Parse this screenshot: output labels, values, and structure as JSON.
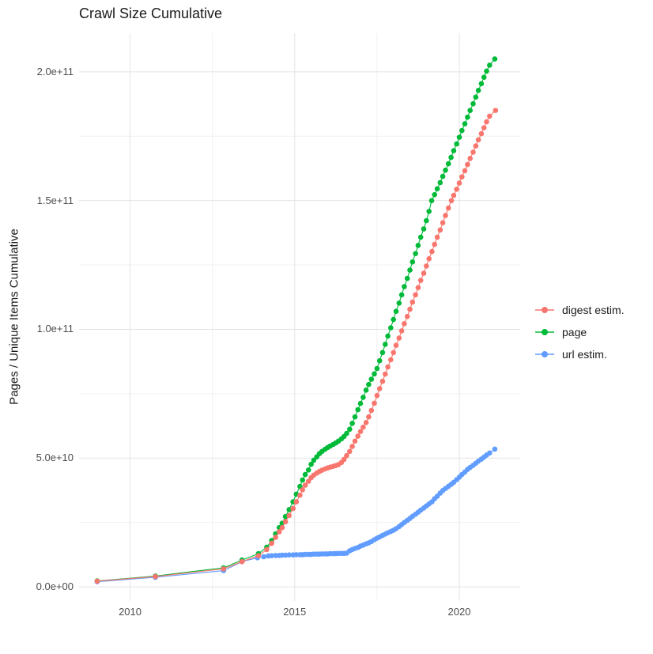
{
  "title": "Crawl Size Cumulative",
  "axes": {
    "y_label": "Pages / Unique Items Cumulative",
    "x_ticks": [
      {
        "value": 2010,
        "label": "2010"
      },
      {
        "value": 2015,
        "label": "2015"
      },
      {
        "value": 2020,
        "label": "2020"
      }
    ],
    "y_ticks": [
      {
        "value": 0,
        "label": "0.0e+00"
      },
      {
        "value": 50000000000.0,
        "label": "5.0e+10"
      },
      {
        "value": 100000000000.0,
        "label": "1.0e+11"
      },
      {
        "value": 150000000000.0,
        "label": "1.5e+11"
      },
      {
        "value": 200000000000.0,
        "label": "2.0e+11"
      }
    ]
  },
  "legend": {
    "position": "right",
    "items": [
      {
        "label": "digest estim.",
        "color": "#F8766D"
      },
      {
        "label": "page",
        "color": "#00BA38"
      },
      {
        "label": "url estim.",
        "color": "#619CFF"
      }
    ]
  },
  "colors": {
    "digest": "#F8766D",
    "page": "#00BA38",
    "url": "#619CFF",
    "grid_major": "#E4E4E4",
    "grid_minor": "#F1F1F1",
    "tick_text": "#4d4d4d"
  },
  "chart_data": {
    "type": "scatter",
    "title": "Crawl Size Cumulative",
    "xlabel": "",
    "ylabel": "Pages / Unique Items Cumulative",
    "xlim": [
      2008.45,
      2021.85
    ],
    "ylim": [
      -5500000000.0,
      215000000000.0
    ],
    "x_tick_values": [
      2010,
      2015,
      2020
    ],
    "y_tick_values": [
      0,
      50000000000.0,
      100000000000.0,
      150000000000.0,
      200000000000.0
    ],
    "grid": true,
    "legend_position": "right",
    "y_scale": 1000000000.0,
    "point_radius": 3.3,
    "draw_order": [
      1,
      2,
      0
    ],
    "series": [
      {
        "name": "digest estim.",
        "color": "#F8766D",
        "points": [
          [
            2009.0,
            2.2
          ],
          [
            2010.77,
            4.0
          ],
          [
            2012.84,
            7.0
          ],
          [
            2013.4,
            9.8
          ],
          [
            2013.9,
            12.1
          ],
          [
            2014.15,
            14.5
          ],
          [
            2014.3,
            16.9
          ],
          [
            2014.42,
            19.2
          ],
          [
            2014.53,
            21.4
          ],
          [
            2014.62,
            23.0
          ],
          [
            2014.72,
            25.3
          ],
          [
            2014.83,
            27.7
          ],
          [
            2014.95,
            30.4
          ],
          [
            2015.05,
            33.0
          ],
          [
            2015.16,
            35.6
          ],
          [
            2015.24,
            37.7
          ],
          [
            2015.32,
            39.5
          ],
          [
            2015.42,
            41.0
          ],
          [
            2015.5,
            42.4
          ],
          [
            2015.58,
            43.4
          ],
          [
            2015.67,
            44.2
          ],
          [
            2015.75,
            44.8
          ],
          [
            2015.83,
            45.3
          ],
          [
            2015.92,
            45.8
          ],
          [
            2016.0,
            46.2
          ],
          [
            2016.08,
            46.5
          ],
          [
            2016.17,
            46.8
          ],
          [
            2016.25,
            47.1
          ],
          [
            2016.33,
            47.5
          ],
          [
            2016.42,
            48.3
          ],
          [
            2016.5,
            49.5
          ],
          [
            2016.58,
            51.0
          ],
          [
            2016.67,
            52.6
          ],
          [
            2016.75,
            54.5
          ],
          [
            2016.83,
            56.6
          ],
          [
            2016.92,
            58.5
          ],
          [
            2017.0,
            60.3
          ],
          [
            2017.08,
            62.0
          ],
          [
            2017.17,
            63.8
          ],
          [
            2017.25,
            66.0
          ],
          [
            2017.33,
            68.5
          ],
          [
            2017.42,
            71.3
          ],
          [
            2017.5,
            74.3
          ],
          [
            2017.58,
            77.0
          ],
          [
            2017.67,
            79.8
          ],
          [
            2017.75,
            82.6
          ],
          [
            2017.83,
            85.4
          ],
          [
            2017.92,
            88.2
          ],
          [
            2018.0,
            91.0
          ],
          [
            2018.08,
            93.8
          ],
          [
            2018.17,
            96.6
          ],
          [
            2018.25,
            99.4
          ],
          [
            2018.33,
            102.2
          ],
          [
            2018.42,
            105.0
          ],
          [
            2018.5,
            107.8
          ],
          [
            2018.58,
            110.6
          ],
          [
            2018.67,
            113.4
          ],
          [
            2018.75,
            116.2
          ],
          [
            2018.83,
            119.0
          ],
          [
            2018.92,
            121.8
          ],
          [
            2019.0,
            124.6
          ],
          [
            2019.08,
            127.4
          ],
          [
            2019.17,
            130.2
          ],
          [
            2019.25,
            133.0
          ],
          [
            2019.33,
            135.8
          ],
          [
            2019.42,
            138.6
          ],
          [
            2019.5,
            141.4
          ],
          [
            2019.58,
            144.2
          ],
          [
            2019.67,
            147.1
          ],
          [
            2019.76,
            150.0
          ],
          [
            2019.83,
            152.0
          ],
          [
            2019.92,
            154.4
          ],
          [
            2020.0,
            156.8
          ],
          [
            2020.08,
            159.2
          ],
          [
            2020.17,
            161.6
          ],
          [
            2020.25,
            164.0
          ],
          [
            2020.33,
            166.4
          ],
          [
            2020.42,
            168.8
          ],
          [
            2020.5,
            171.2
          ],
          [
            2020.58,
            173.6
          ],
          [
            2020.67,
            176.0
          ],
          [
            2020.75,
            178.3
          ],
          [
            2020.83,
            180.6
          ],
          [
            2020.92,
            182.8
          ],
          [
            2021.1,
            185.0
          ]
        ]
      },
      {
        "name": "page",
        "color": "#00BA38",
        "points": [
          [
            2009.0,
            2.3
          ],
          [
            2010.77,
            4.2
          ],
          [
            2012.84,
            7.4
          ],
          [
            2013.4,
            10.4
          ],
          [
            2013.9,
            12.9
          ],
          [
            2014.15,
            15.4
          ],
          [
            2014.3,
            18.0
          ],
          [
            2014.42,
            20.6
          ],
          [
            2014.53,
            23.0
          ],
          [
            2014.62,
            24.7
          ],
          [
            2014.72,
            27.3
          ],
          [
            2014.83,
            30.0
          ],
          [
            2014.95,
            33.0
          ],
          [
            2015.05,
            36.0
          ],
          [
            2015.16,
            39.0
          ],
          [
            2015.24,
            41.5
          ],
          [
            2015.32,
            43.6
          ],
          [
            2015.42,
            45.4
          ],
          [
            2015.5,
            47.6
          ],
          [
            2015.58,
            49.2
          ],
          [
            2015.67,
            50.5
          ],
          [
            2015.75,
            51.7
          ],
          [
            2015.83,
            52.6
          ],
          [
            2015.92,
            53.4
          ],
          [
            2016.0,
            54.1
          ],
          [
            2016.08,
            54.7
          ],
          [
            2016.17,
            55.3
          ],
          [
            2016.25,
            55.9
          ],
          [
            2016.33,
            56.6
          ],
          [
            2016.42,
            57.5
          ],
          [
            2016.5,
            58.4
          ],
          [
            2016.58,
            59.6
          ],
          [
            2016.67,
            61.2
          ],
          [
            2016.75,
            63.5
          ],
          [
            2016.83,
            66.0
          ],
          [
            2016.92,
            68.8
          ],
          [
            2017.0,
            71.2
          ],
          [
            2017.08,
            73.6
          ],
          [
            2017.17,
            76.4
          ],
          [
            2017.25,
            78.6
          ],
          [
            2017.33,
            80.6
          ],
          [
            2017.42,
            82.7
          ],
          [
            2017.5,
            84.8
          ],
          [
            2017.58,
            87.8
          ],
          [
            2017.67,
            91.0
          ],
          [
            2017.75,
            94.2
          ],
          [
            2017.83,
            97.4
          ],
          [
            2017.92,
            100.6
          ],
          [
            2018.0,
            103.8
          ],
          [
            2018.08,
            107.0
          ],
          [
            2018.17,
            110.2
          ],
          [
            2018.25,
            113.4
          ],
          [
            2018.33,
            116.6
          ],
          [
            2018.42,
            119.8
          ],
          [
            2018.5,
            123.0
          ],
          [
            2018.58,
            126.2
          ],
          [
            2018.67,
            129.4
          ],
          [
            2018.75,
            132.6
          ],
          [
            2018.83,
            135.8
          ],
          [
            2018.92,
            139.0
          ],
          [
            2019.0,
            142.2
          ],
          [
            2019.08,
            145.8
          ],
          [
            2019.16,
            150.0
          ],
          [
            2019.25,
            152.3
          ],
          [
            2019.33,
            154.6
          ],
          [
            2019.42,
            157.0
          ],
          [
            2019.5,
            159.4
          ],
          [
            2019.58,
            161.8
          ],
          [
            2019.67,
            164.3
          ],
          [
            2019.75,
            166.8
          ],
          [
            2019.83,
            169.4
          ],
          [
            2019.92,
            172.0
          ],
          [
            2020.0,
            174.6
          ],
          [
            2020.08,
            177.2
          ],
          [
            2020.17,
            179.8
          ],
          [
            2020.25,
            182.4
          ],
          [
            2020.33,
            185.0
          ],
          [
            2020.42,
            187.6
          ],
          [
            2020.5,
            190.2
          ],
          [
            2020.58,
            192.8
          ],
          [
            2020.67,
            195.4
          ],
          [
            2020.75,
            197.9
          ],
          [
            2020.83,
            200.3
          ],
          [
            2020.92,
            202.6
          ],
          [
            2021.08,
            205.0
          ]
        ]
      },
      {
        "name": "url estim.",
        "color": "#619CFF",
        "points": [
          [
            2009.0,
            2.0
          ],
          [
            2010.77,
            3.7
          ],
          [
            2012.84,
            6.3
          ],
          [
            2013.4,
            9.8
          ],
          [
            2013.87,
            11.3
          ],
          [
            2014.06,
            11.7
          ],
          [
            2014.2,
            12.0
          ],
          [
            2014.3,
            12.1
          ],
          [
            2014.42,
            12.2
          ],
          [
            2014.53,
            12.2
          ],
          [
            2014.62,
            12.3
          ],
          [
            2014.72,
            12.3
          ],
          [
            2014.83,
            12.4
          ],
          [
            2014.95,
            12.4
          ],
          [
            2015.05,
            12.5
          ],
          [
            2015.16,
            12.5
          ],
          [
            2015.24,
            12.5
          ],
          [
            2015.32,
            12.6
          ],
          [
            2015.42,
            12.6
          ],
          [
            2015.5,
            12.6
          ],
          [
            2015.58,
            12.7
          ],
          [
            2015.67,
            12.7
          ],
          [
            2015.75,
            12.7
          ],
          [
            2015.83,
            12.8
          ],
          [
            2015.92,
            12.8
          ],
          [
            2016.0,
            12.8
          ],
          [
            2016.08,
            12.9
          ],
          [
            2016.17,
            12.9
          ],
          [
            2016.25,
            12.9
          ],
          [
            2016.33,
            13.0
          ],
          [
            2016.42,
            13.0
          ],
          [
            2016.5,
            13.0
          ],
          [
            2016.58,
            13.1
          ],
          [
            2016.67,
            14.0
          ],
          [
            2016.75,
            14.5
          ],
          [
            2016.83,
            14.9
          ],
          [
            2016.92,
            15.3
          ],
          [
            2017.0,
            15.8
          ],
          [
            2017.08,
            16.2
          ],
          [
            2017.17,
            16.7
          ],
          [
            2017.25,
            17.1
          ],
          [
            2017.33,
            17.6
          ],
          [
            2017.42,
            18.3
          ],
          [
            2017.5,
            18.9
          ],
          [
            2017.58,
            19.4
          ],
          [
            2017.67,
            20.0
          ],
          [
            2017.75,
            20.5
          ],
          [
            2017.83,
            21.0
          ],
          [
            2017.92,
            21.5
          ],
          [
            2018.0,
            22.0
          ],
          [
            2018.08,
            22.6
          ],
          [
            2018.17,
            23.4
          ],
          [
            2018.25,
            24.2
          ],
          [
            2018.33,
            25.0
          ],
          [
            2018.42,
            25.8
          ],
          [
            2018.5,
            26.6
          ],
          [
            2018.58,
            27.4
          ],
          [
            2018.67,
            28.2
          ],
          [
            2018.75,
            29.0
          ],
          [
            2018.83,
            29.8
          ],
          [
            2018.92,
            30.6
          ],
          [
            2019.0,
            31.4
          ],
          [
            2019.08,
            32.2
          ],
          [
            2019.17,
            33.0
          ],
          [
            2019.25,
            34.2
          ],
          [
            2019.33,
            35.2
          ],
          [
            2019.42,
            36.4
          ],
          [
            2019.5,
            37.4
          ],
          [
            2019.58,
            38.2
          ],
          [
            2019.67,
            39.0
          ],
          [
            2019.75,
            39.8
          ],
          [
            2019.83,
            40.6
          ],
          [
            2019.92,
            41.6
          ],
          [
            2020.0,
            42.6
          ],
          [
            2020.08,
            43.6
          ],
          [
            2020.17,
            44.6
          ],
          [
            2020.25,
            45.6
          ],
          [
            2020.33,
            46.4
          ],
          [
            2020.42,
            47.2
          ],
          [
            2020.5,
            48.0
          ],
          [
            2020.58,
            48.8
          ],
          [
            2020.67,
            49.6
          ],
          [
            2020.75,
            50.4
          ],
          [
            2020.83,
            51.2
          ],
          [
            2020.92,
            52.0
          ],
          [
            2021.08,
            53.5
          ]
        ]
      }
    ]
  }
}
